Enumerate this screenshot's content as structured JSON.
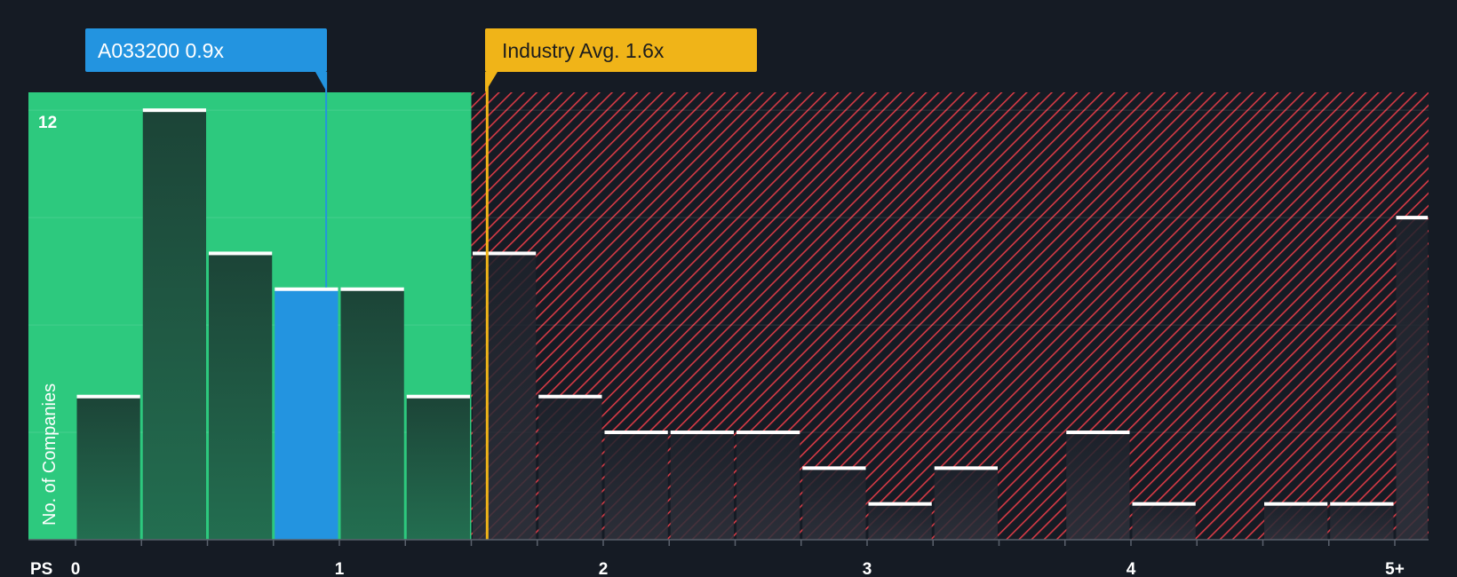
{
  "chart_data": {
    "type": "bar",
    "xlabel": "PS",
    "ylabel": "No. of Companies",
    "x_tick_labels": [
      "0",
      "1",
      "2",
      "3",
      "4",
      "5+"
    ],
    "y_tick_labels": [
      "12"
    ],
    "ylim": [
      0,
      12.5
    ],
    "bins": [
      {
        "x0": 0.0,
        "x1": 0.25,
        "value": 4
      },
      {
        "x0": 0.25,
        "x1": 0.5,
        "value": 12
      },
      {
        "x0": 0.5,
        "x1": 0.75,
        "value": 8
      },
      {
        "x0": 0.75,
        "x1": 1.0,
        "value": 7,
        "highlight": true
      },
      {
        "x0": 1.0,
        "x1": 1.25,
        "value": 7
      },
      {
        "x0": 1.25,
        "x1": 1.5,
        "value": 4
      },
      {
        "x0": 1.5,
        "x1": 1.75,
        "value": 8
      },
      {
        "x0": 1.75,
        "x1": 2.0,
        "value": 4
      },
      {
        "x0": 2.0,
        "x1": 2.25,
        "value": 3
      },
      {
        "x0": 2.25,
        "x1": 2.5,
        "value": 3
      },
      {
        "x0": 2.5,
        "x1": 2.75,
        "value": 3
      },
      {
        "x0": 2.75,
        "x1": 3.0,
        "value": 2
      },
      {
        "x0": 3.0,
        "x1": 3.25,
        "value": 1
      },
      {
        "x0": 3.25,
        "x1": 3.5,
        "value": 2
      },
      {
        "x0": 3.5,
        "x1": 3.75,
        "value": 0
      },
      {
        "x0": 3.75,
        "x1": 4.0,
        "value": 3
      },
      {
        "x0": 4.0,
        "x1": 4.25,
        "value": 1
      },
      {
        "x0": 4.25,
        "x1": 4.5,
        "value": 0
      },
      {
        "x0": 4.5,
        "x1": 4.75,
        "value": 1
      },
      {
        "x0": 4.75,
        "x1": 5.0,
        "value": 1
      },
      {
        "x0": 5.0,
        "x1": 5.13,
        "value": 9
      }
    ],
    "company": {
      "label": "A033200 0.9x",
      "value": 0.95
    },
    "industry": {
      "label": "Industry Avg. 1.6x",
      "value": 1.56
    },
    "fair_zone_max": 1.5,
    "grid": true,
    "colors": {
      "background": "#151b24",
      "fair_zone": "#2dc97e",
      "bar": "#1e4a3b",
      "highlight_bar": "#2394e0",
      "hatch": "#d63a45",
      "over_zone_bar": "#262a33",
      "company_marker": "#2394e0",
      "industry_marker": "#f0b418",
      "bar_cap": "#ffffff",
      "text": "#ffffff"
    }
  }
}
